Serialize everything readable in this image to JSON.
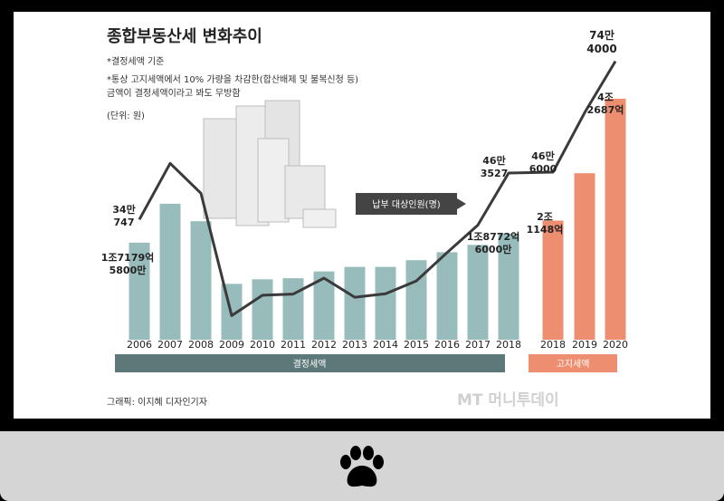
{
  "header": {
    "title": "종합부동산세 변화추이",
    "note1": "*결정세액 기준",
    "note2a": "*통상 고지세액에서 10% 가량을 차감한(합산배제 및 불복신청 등)",
    "note2b": "금액이 결정세액이라고 봐도 무방함",
    "unit": "(단위: 원)"
  },
  "footer": {
    "credit": "그래픽: 이지혜 디자인기자",
    "watermark": "MT 머니투데이"
  },
  "colors": {
    "teal": "#98bcbb",
    "orange": "#ee8e70",
    "line": "#3a3a3a",
    "band_teal": "#5d7878",
    "band_orange": "#ee8e70"
  },
  "chart_data": {
    "type": "bar",
    "x_labels": [
      "2006",
      "2007",
      "2008",
      "2009",
      "2010",
      "2011",
      "2012",
      "2013",
      "2014",
      "2015",
      "2016",
      "2017",
      "2018",
      "2018",
      "2019",
      "2020"
    ],
    "bar_values_trillion_won": [
      1.72,
      2.41,
      2.1,
      0.99,
      1.07,
      1.09,
      1.21,
      1.29,
      1.29,
      1.41,
      1.55,
      1.68,
      1.88,
      2.11,
      2.95,
      4.27
    ],
    "line_series": {
      "name": "납부 대상인원(명)",
      "values_persons": [
        347,
        488,
        413,
        106,
        157,
        160,
        200,
        152,
        161,
        193,
        264,
        333,
        463527,
        466000,
        615000,
        744000
      ]
    },
    "groups": [
      {
        "name": "결정세액",
        "from_index": 0,
        "to_index": 12
      },
      {
        "name": "고지세액",
        "from_index": 13,
        "to_index": 15
      }
    ],
    "annotations": [
      {
        "id": "a2006_people_1",
        "text": "34만"
      },
      {
        "id": "a2006_people_2",
        "text": "747"
      },
      {
        "id": "a2006_tax_1",
        "text": "1조7179억"
      },
      {
        "id": "a2006_tax_2",
        "text": "5800만"
      },
      {
        "id": "a2018d_people_1",
        "text": "46만"
      },
      {
        "id": "a2018d_people_2",
        "text": "3527"
      },
      {
        "id": "a2018d_tax_1",
        "text": "1조8772억"
      },
      {
        "id": "a2018d_tax_2",
        "text": "6000만"
      },
      {
        "id": "a2018n_people_1",
        "text": "46만"
      },
      {
        "id": "a2018n_people_2",
        "text": "6000"
      },
      {
        "id": "a2018n_tax_1",
        "text": "2조"
      },
      {
        "id": "a2018n_tax_2",
        "text": "1148억"
      },
      {
        "id": "a2020_people_1",
        "text": "74만"
      },
      {
        "id": "a2020_people_2",
        "text": "4000"
      },
      {
        "id": "a2020_tax_1",
        "text": "4조"
      },
      {
        "id": "a2020_tax_2",
        "text": "2687억"
      }
    ],
    "ylim_trillion_won": [
      0,
      4.27
    ],
    "grid": false,
    "legend_label": "납부 대상인원(명)"
  }
}
